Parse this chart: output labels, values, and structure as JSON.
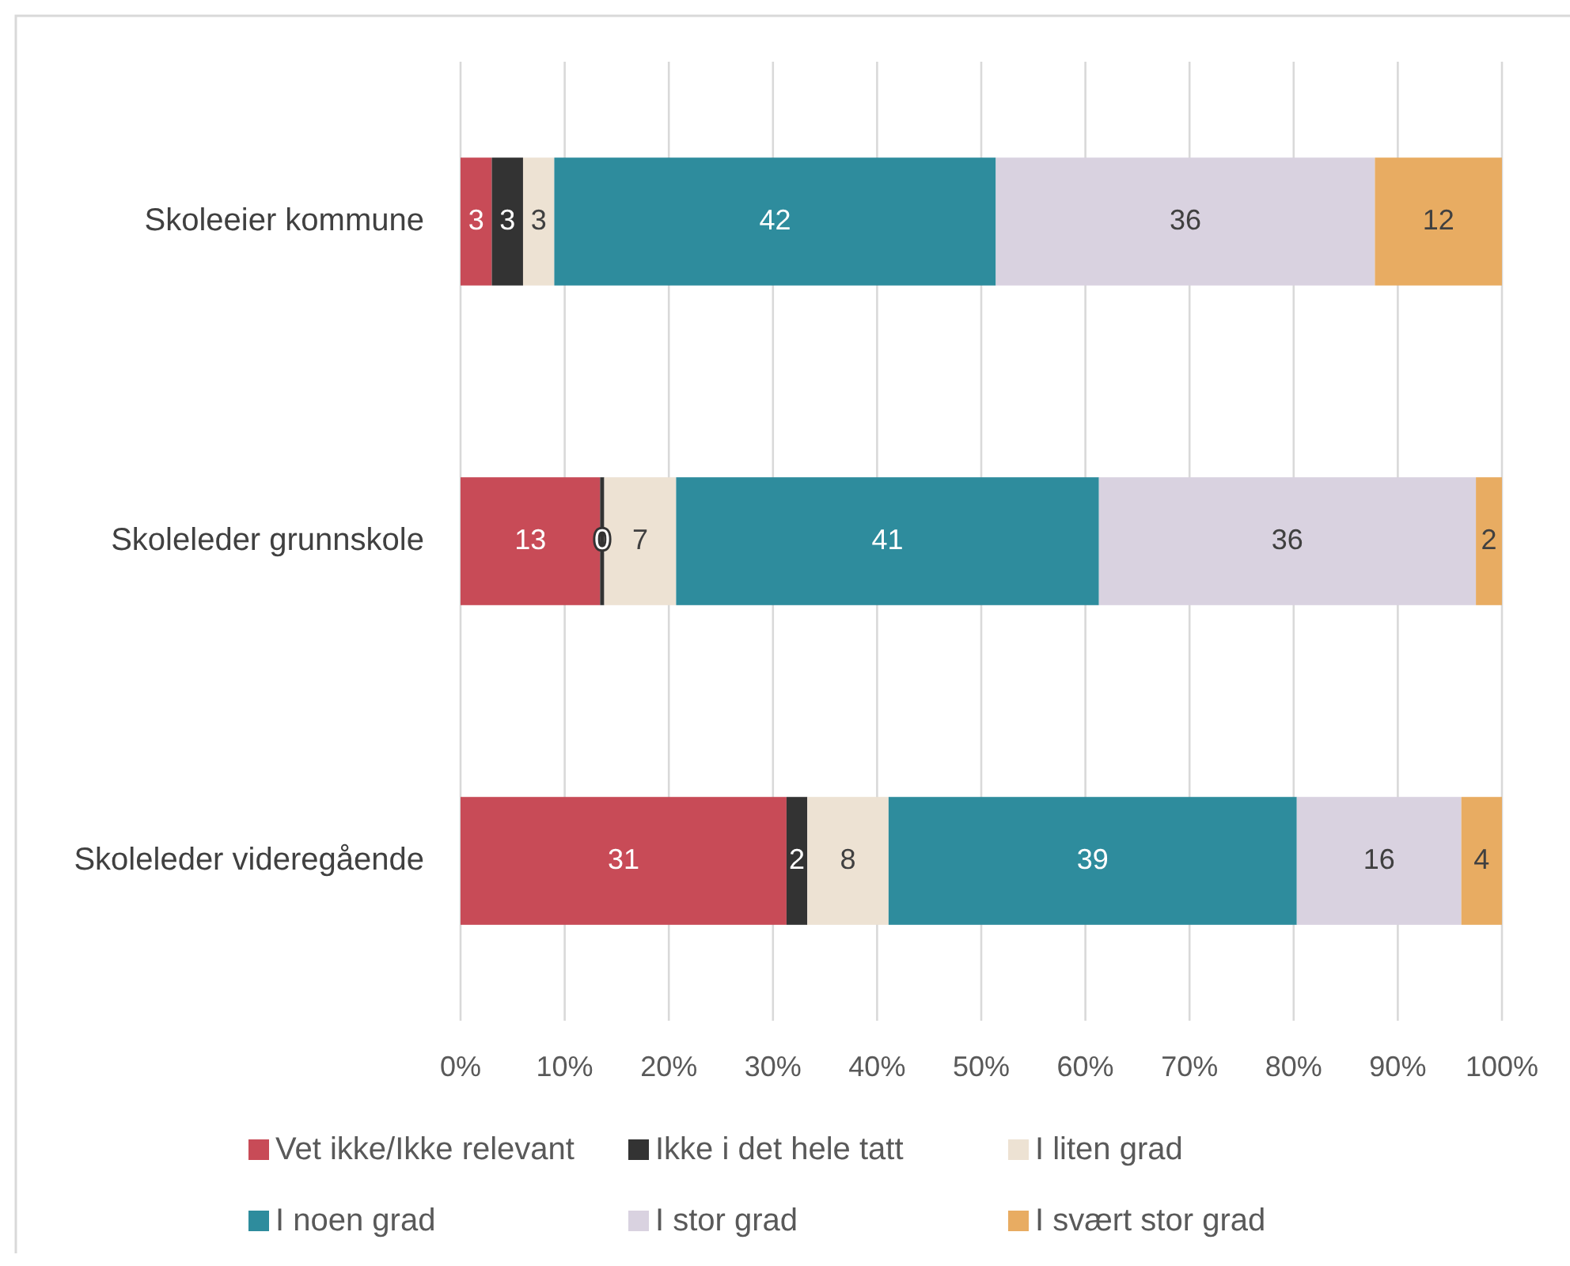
{
  "chart_data": {
    "type": "bar",
    "orientation": "horizontal",
    "stacked": true,
    "categories": [
      "Skoleeier kommune",
      "Skoleleder grunnskole",
      "Skoleleder videregående"
    ],
    "series": [
      {
        "name": "Vet ikke/Ikke relevant",
        "color": "#c84b57",
        "values": [
          3.0,
          13.4,
          31.3
        ],
        "value_labels": [
          "3",
          "13",
          "31"
        ]
      },
      {
        "name": "Ikke i det hele tatt",
        "color": "#333333",
        "values": [
          3.0,
          0.4,
          2.0
        ],
        "value_labels": [
          "3",
          "0",
          "2"
        ]
      },
      {
        "name": "I liten grad",
        "color": "#ede2d3",
        "values": [
          3.0,
          6.9,
          7.8
        ],
        "value_labels": [
          "3",
          "7",
          "8"
        ]
      },
      {
        "name": "I noen grad",
        "color": "#2e8c9d",
        "values": [
          42.4,
          40.6,
          39.2
        ],
        "value_labels": [
          "42",
          "41",
          "39"
        ]
      },
      {
        "name": "I stor grad",
        "color": "#d9d2e0",
        "values": [
          36.4,
          36.2,
          15.8
        ],
        "value_labels": [
          "36",
          "36",
          "16"
        ]
      },
      {
        "name": "I svært stor grad",
        "color": "#e8ac62",
        "values": [
          12.2,
          2.5,
          3.9
        ],
        "value_labels": [
          "12",
          "2",
          "4"
        ]
      }
    ],
    "xlim": [
      0,
      100
    ],
    "xticks": [
      {
        "value": 0,
        "label": "0%"
      },
      {
        "value": 10,
        "label": "10%"
      },
      {
        "value": 20,
        "label": "20%"
      },
      {
        "value": 30,
        "label": "30%"
      },
      {
        "value": 40,
        "label": "40%"
      },
      {
        "value": 50,
        "label": "50%"
      },
      {
        "value": 60,
        "label": "60%"
      },
      {
        "value": 70,
        "label": "70%"
      },
      {
        "value": 80,
        "label": "80%"
      },
      {
        "value": 90,
        "label": "90%"
      },
      {
        "value": 100,
        "label": "100%"
      }
    ],
    "grid": "x",
    "legend": "bottom"
  }
}
